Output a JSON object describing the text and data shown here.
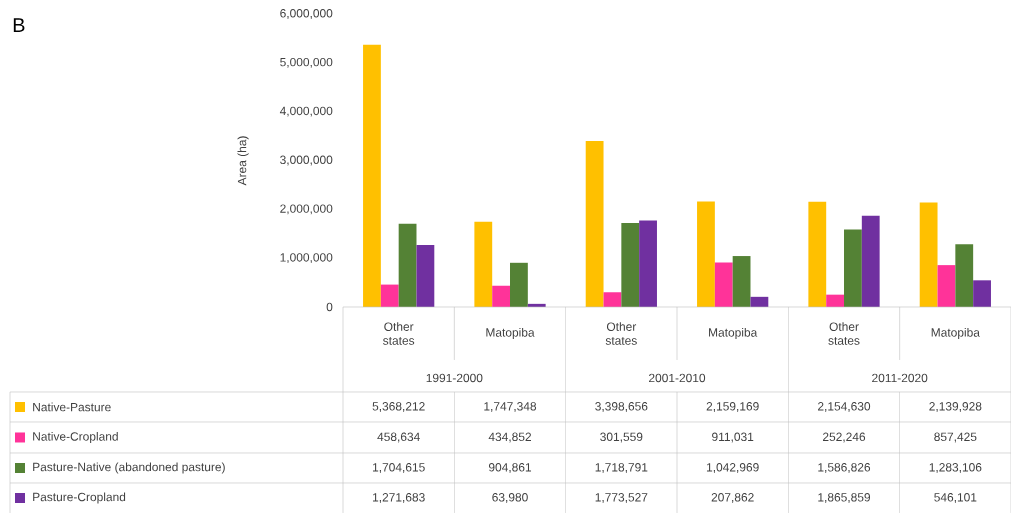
{
  "chart_data": {
    "type": "bar",
    "title": "B",
    "ylabel": "Area (ha)",
    "categories": [
      "Other states",
      "Matopiba",
      "Other states",
      "Matopiba",
      "Other states",
      "Matopiba"
    ],
    "annotations": [
      "1991-2000",
      "2001-2010",
      "2011-2020"
    ],
    "series": [
      {
        "name": "Native-Pasture",
        "color": "#ffc000",
        "values": [
          5368212,
          1747348,
          3398656,
          2159169,
          2154630,
          2139928
        ],
        "value_labels": [
          "5,368,212",
          "1,747,348",
          "3,398,656",
          "2,159,169",
          "2,154,630",
          "2,139,928"
        ]
      },
      {
        "name": "Native-Cropland",
        "color": "#ff3399",
        "values": [
          458634,
          434852,
          301559,
          911031,
          252246,
          857425
        ],
        "value_labels": [
          "458,634",
          "434,852",
          "301,559",
          "911,031",
          "252,246",
          "857,425"
        ]
      },
      {
        "name": "Pasture-Native (abandoned pasture)",
        "color": "#548235",
        "values": [
          1704615,
          904861,
          1718791,
          1042969,
          1586826,
          1283106
        ],
        "value_labels": [
          "1,704,615",
          "904,861",
          "1,718,791",
          "1,042,969",
          "1,586,826",
          "1,283,106"
        ]
      },
      {
        "name": "Pasture-Cropland",
        "color": "#7030a0",
        "values": [
          1271683,
          63980,
          1773527,
          207862,
          1865859,
          546101
        ],
        "value_labels": [
          "1,271,683",
          "63,980",
          "1,773,527",
          "207,862",
          "1,865,859",
          "546,101"
        ]
      }
    ],
    "ylim": [
      0,
      6000000
    ],
    "yticks": [
      0,
      {
        "value": 1000000,
        "label": "1,000,000"
      },
      {
        "value": 2000000,
        "label": "2,000,000"
      },
      {
        "value": 3000000,
        "label": "3,000,000"
      },
      {
        "value": 4000000,
        "label": "4,000,000"
      },
      {
        "value": 5000000,
        "label": "5,000,000"
      },
      {
        "value": 6000000,
        "label": "6,000,000"
      }
    ],
    "legend": "bottom",
    "grid": false
  }
}
